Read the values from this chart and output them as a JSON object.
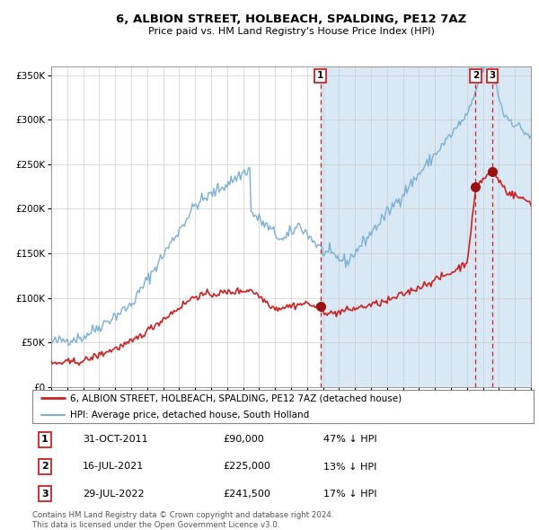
{
  "title": "6, ALBION STREET, HOLBEACH, SPALDING, PE12 7AZ",
  "subtitle": "Price paid vs. HM Land Registry's House Price Index (HPI)",
  "hpi_color": "#7ab0d4",
  "price_color": "#cc2222",
  "shade_color": "#d8e8f5",
  "plot_bg": "#ffffff",
  "grid_color": "#cccccc",
  "marker_color": "#991111",
  "dashed_line_color": "#cc2222",
  "legend_line1": "6, ALBION STREET, HOLBEACH, SPALDING, PE12 7AZ (detached house)",
  "legend_line2": "HPI: Average price, detached house, South Holland",
  "transactions": [
    {
      "num": 1,
      "date": "31-OCT-2011",
      "price": "£90,000",
      "note": "47% ↓ HPI",
      "year": 2011.83,
      "value": 90000
    },
    {
      "num": 2,
      "date": "16-JUL-2021",
      "price": "£225,000",
      "note": "13% ↓ HPI",
      "year": 2021.54,
      "value": 225000
    },
    {
      "num": 3,
      "date": "29-JUL-2022",
      "price": "£241,500",
      "note": "17% ↓ HPI",
      "year": 2022.57,
      "value": 241500
    }
  ],
  "copyright": "Contains HM Land Registry data © Crown copyright and database right 2024.\nThis data is licensed under the Open Government Licence v3.0.",
  "ylim": [
    0,
    360000
  ],
  "yticks": [
    0,
    50000,
    100000,
    150000,
    200000,
    250000,
    300000,
    350000
  ]
}
